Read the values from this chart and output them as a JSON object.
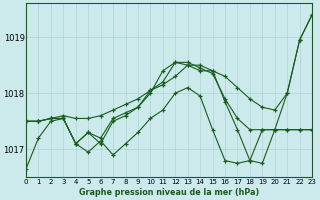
{
  "title": "Graphe pression niveau de la mer (hPa)",
  "bg_color": "#cce9ec",
  "grid_color": "#aad4d8",
  "line_color": "#1a5c1a",
  "xlim": [
    0,
    23
  ],
  "ylim": [
    1016.5,
    1019.6
  ],
  "yticks": [
    1017,
    1018,
    1019
  ],
  "xticks": [
    0,
    1,
    2,
    3,
    4,
    5,
    6,
    7,
    8,
    9,
    10,
    11,
    12,
    13,
    14,
    15,
    16,
    17,
    18,
    19,
    20,
    21,
    22,
    23
  ],
  "series": [
    [
      1016.65,
      1017.2,
      1017.5,
      1017.55,
      1017.1,
      1016.95,
      1017.15,
      1016.9,
      1017.1,
      1017.3,
      1017.55,
      1017.7,
      1018.0,
      1018.1,
      1017.95,
      1017.35,
      1016.8,
      1016.75,
      1016.8,
      1017.35,
      1017.35,
      1017.35,
      1017.35,
      1017.35
    ],
    [
      1017.5,
      1017.5,
      1017.55,
      1017.6,
      1017.55,
      1017.55,
      1017.6,
      1017.7,
      1017.8,
      1017.9,
      1018.05,
      1018.15,
      1018.3,
      1018.5,
      1018.5,
      1018.4,
      1018.3,
      1018.1,
      1017.9,
      1017.75,
      1017.7,
      1018.0,
      1018.95,
      1019.4
    ],
    [
      1017.5,
      1017.5,
      1017.55,
      1017.55,
      1017.1,
      1017.3,
      1017.1,
      1017.5,
      1017.6,
      1017.75,
      1018.0,
      1018.4,
      1018.55,
      1018.5,
      1018.4,
      1018.4,
      1017.85,
      1017.35,
      1016.8,
      1016.75,
      1017.35,
      1017.35,
      1017.35,
      1017.35
    ],
    [
      1017.5,
      1017.5,
      1017.55,
      1017.55,
      1017.1,
      1017.3,
      1017.2,
      1017.55,
      1017.65,
      1017.75,
      1018.05,
      1018.2,
      1018.55,
      1018.55,
      1018.45,
      1018.35,
      1017.9,
      1017.55,
      1017.35,
      1017.35,
      1017.35,
      1018.0,
      1018.95,
      1019.4
    ]
  ]
}
